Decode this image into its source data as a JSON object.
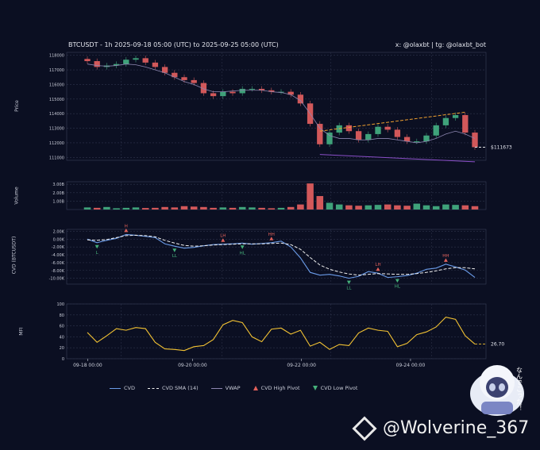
{
  "header": {
    "title": "BTCUSDT - 1h 2025-09-18 05:00 (UTC) to 2025-09-25 05:00 (UTC)",
    "credit": "x: @olaxbt | tg: @olaxbt_bot"
  },
  "panels": {
    "price_label": "Price",
    "volume_label": "Volume",
    "cvd_label": "CVD (BTCUSDT)",
    "mfi_label": "MFI"
  },
  "legend": {
    "cvd": "CVD",
    "cvd_sma": "CVD SMA (14)",
    "vwap": "VWAP",
    "high_pivot": "CVD High Pivot",
    "low_pivot": "CVD Low Pivot"
  },
  "watermark": {
    "text": "@Wolverine_367",
    "mascot_text": "なんでこった！"
  },
  "chart_data": [
    {
      "type": "line",
      "name": "price",
      "ylabel": "Price",
      "yticks": [
        111000,
        112000,
        113000,
        114000,
        115000,
        116000,
        117000,
        118000
      ],
      "ylim": [
        110800,
        118200
      ],
      "last_label": "$111673",
      "close": [
        117600,
        117200,
        117300,
        117400,
        117700,
        117800,
        117500,
        117200,
        116800,
        116500,
        116300,
        116100,
        115400,
        115200,
        115500,
        115400,
        115700,
        115700,
        115600,
        115500,
        115500,
        115300,
        114700,
        113300,
        111900,
        112700,
        113200,
        112800,
        112200,
        112600,
        113100,
        112900,
        112400,
        112100,
        112100,
        112500,
        113200,
        113700,
        113900,
        112700,
        111700
      ],
      "vwap": [
        117400,
        117300,
        117250,
        117300,
        117400,
        117350,
        117200,
        117000,
        116800,
        116500,
        116200,
        116000,
        115700,
        115500,
        115500,
        115550,
        115600,
        115600,
        115600,
        115500,
        115450,
        115300,
        114900,
        114000,
        113000,
        112500,
        112300,
        112300,
        112200,
        112200,
        112300,
        112300,
        112200,
        112100,
        112000,
        112100,
        112300,
        112600,
        112800,
        112600,
        112300
      ],
      "upper_trend": {
        "from": [
          112800
        ],
        "to": [
          114100
        ]
      },
      "lower_trend": {
        "from": [
          111200
        ],
        "to": [
          110700
        ]
      },
      "grid": true
    },
    {
      "type": "bar",
      "name": "volume",
      "ylabel": "Volume",
      "yticks_labels": [
        "1.00B",
        "2.00B",
        "3.00B"
      ],
      "ylim": [
        0,
        3.3
      ],
      "values": [
        0.25,
        0.2,
        0.3,
        0.15,
        0.2,
        0.25,
        0.18,
        0.2,
        0.3,
        0.25,
        0.4,
        0.35,
        0.3,
        0.2,
        0.25,
        0.2,
        0.3,
        0.25,
        0.2,
        0.15,
        0.2,
        0.3,
        0.6,
        3.1,
        1.6,
        0.8,
        0.6,
        0.5,
        0.45,
        0.5,
        0.55,
        0.6,
        0.5,
        0.45,
        0.7,
        0.5,
        0.4,
        0.6,
        0.55,
        0.5,
        0.4
      ],
      "grid": true
    },
    {
      "type": "line",
      "name": "cvd",
      "ylabel": "CVD (BTCUSDT)",
      "yticks_labels": [
        "2.00K",
        "0.00K",
        "-2.00K",
        "-4.00K",
        "-6.00K",
        "-8.00K",
        "-10.00K"
      ],
      "ylim": [
        -11500,
        2500
      ],
      "cvd": [
        0,
        -900,
        -300,
        200,
        1200,
        1000,
        700,
        400,
        -1200,
        -1800,
        -2300,
        -2100,
        -1700,
        -1400,
        -1300,
        -1200,
        -1000,
        -1300,
        -1100,
        -900,
        -500,
        -2000,
        -4800,
        -8500,
        -9200,
        -9000,
        -9400,
        -10000,
        -9500,
        -8300,
        -8700,
        -9800,
        -9600,
        -9300,
        -8700,
        -7700,
        -7400,
        -6400,
        -7100,
        -7900,
        -9800
      ],
      "cvd_sma": [
        -200,
        -300,
        -100,
        400,
        900,
        1000,
        900,
        600,
        -300,
        -1000,
        -1600,
        -1800,
        -1700,
        -1500,
        -1400,
        -1300,
        -1200,
        -1200,
        -1200,
        -1100,
        -1000,
        -1400,
        -2600,
        -4700,
        -6600,
        -7700,
        -8400,
        -8900,
        -9200,
        -9000,
        -8800,
        -8900,
        -9000,
        -9000,
        -8800,
        -8500,
        -8100,
        -7600,
        -7300,
        -7300,
        -7600
      ],
      "high_pivots": [
        {
          "i": 4,
          "label": "H"
        },
        {
          "i": 14,
          "label": "LH"
        },
        {
          "i": 19,
          "label": "HH"
        },
        {
          "i": 30,
          "label": "LH"
        },
        {
          "i": 37,
          "label": "HH"
        }
      ],
      "low_pivots": [
        {
          "i": 1,
          "label": "L"
        },
        {
          "i": 9,
          "label": "LL"
        },
        {
          "i": 16,
          "label": "HL"
        },
        {
          "i": 27,
          "label": "LL"
        },
        {
          "i": 32,
          "label": "HL"
        }
      ],
      "grid": true
    },
    {
      "type": "line",
      "name": "mfi",
      "ylabel": "MFI",
      "yticks": [
        0,
        20,
        40,
        60,
        80,
        100
      ],
      "ylim": [
        0,
        100
      ],
      "last_label": "26.70",
      "values": [
        48,
        30,
        42,
        55,
        52,
        57,
        55,
        30,
        18,
        17,
        15,
        22,
        24,
        35,
        62,
        70,
        66,
        40,
        31,
        54,
        56,
        45,
        52,
        23,
        30,
        17,
        26,
        24,
        47,
        56,
        52,
        50,
        22,
        28,
        44,
        49,
        58,
        76,
        72,
        42,
        26.7
      ],
      "x_tick_labels": [
        "09-18 00:00",
        "09-20 00:00",
        "09-22 00:00",
        "09-24 00:00"
      ],
      "grid": true
    }
  ]
}
